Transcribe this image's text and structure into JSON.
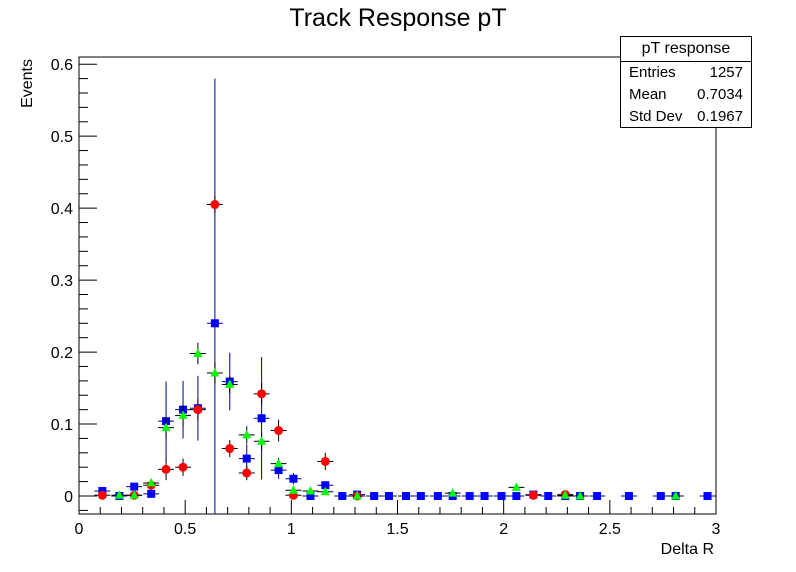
{
  "chart_data": {
    "type": "scatter",
    "title": "Track Response pT",
    "xlabel": "Delta R",
    "ylabel": "Events",
    "xlim": [
      0,
      3
    ],
    "ylim": [
      -0.025,
      0.61
    ],
    "x_ticks": [
      0,
      0.5,
      1,
      1.5,
      2,
      2.5,
      3
    ],
    "x_tick_labels": [
      "0",
      "0.5",
      "1",
      "1.5",
      "2",
      "2.5",
      "3"
    ],
    "y_ticks": [
      0,
      0.1,
      0.2,
      0.3,
      0.4,
      0.5,
      0.6
    ],
    "y_tick_labels": [
      "0",
      "0.1",
      "0.2",
      "0.3",
      "0.4",
      "0.5",
      "0.6"
    ],
    "grid": false,
    "series": [
      {
        "marker": "square",
        "color": "#0000ff",
        "error_color": "#000080",
        "points": [
          {
            "x": 0.11,
            "y": 0.007,
            "err": 0.004
          },
          {
            "x": 0.19,
            "y": 0.0,
            "err": 0.002
          },
          {
            "x": 0.26,
            "y": 0.013,
            "err": 0.005
          },
          {
            "x": 0.34,
            "y": 0.003,
            "err": 0.004
          },
          {
            "x": 0.41,
            "y": 0.104,
            "err": 0.055
          },
          {
            "x": 0.49,
            "y": 0.12,
            "err": 0.04
          },
          {
            "x": 0.56,
            "y": 0.122,
            "err": 0.045
          },
          {
            "x": 0.64,
            "y": 0.24,
            "err": 0.34
          },
          {
            "x": 0.71,
            "y": 0.159,
            "err": 0.04
          },
          {
            "x": 0.79,
            "y": 0.052,
            "err": 0.02
          },
          {
            "x": 0.86,
            "y": 0.108,
            "err": 0.085
          },
          {
            "x": 0.94,
            "y": 0.036,
            "err": 0.012
          },
          {
            "x": 1.01,
            "y": 0.024,
            "err": 0.008
          },
          {
            "x": 1.09,
            "y": 0.0,
            "err": 0.002
          },
          {
            "x": 1.16,
            "y": 0.015,
            "err": 0.005
          },
          {
            "x": 1.24,
            "y": 0.0,
            "err": 0.002
          },
          {
            "x": 1.31,
            "y": 0.002,
            "err": 0.002
          },
          {
            "x": 1.39,
            "y": 0.0,
            "err": 0.002
          },
          {
            "x": 1.46,
            "y": 0.0,
            "err": 0.002
          },
          {
            "x": 1.54,
            "y": 0.0,
            "err": 0.002
          },
          {
            "x": 1.61,
            "y": 0.0,
            "err": 0.002
          },
          {
            "x": 1.69,
            "y": 0.0,
            "err": 0.002
          },
          {
            "x": 1.76,
            "y": 0.0,
            "err": 0.002
          },
          {
            "x": 1.84,
            "y": 0.0,
            "err": 0.002
          },
          {
            "x": 1.91,
            "y": 0.0,
            "err": 0.002
          },
          {
            "x": 1.99,
            "y": 0.0,
            "err": 0.002
          },
          {
            "x": 2.06,
            "y": 0.0,
            "err": 0.002
          },
          {
            "x": 2.14,
            "y": 0.002,
            "err": 0.002
          },
          {
            "x": 2.21,
            "y": 0.0,
            "err": 0.002
          },
          {
            "x": 2.29,
            "y": 0.0,
            "err": 0.002
          },
          {
            "x": 2.36,
            "y": 0.0,
            "err": 0.002
          },
          {
            "x": 2.44,
            "y": 0.0,
            "err": 0.002
          },
          {
            "x": 2.59,
            "y": 0.0,
            "err": 0.002
          },
          {
            "x": 2.74,
            "y": 0.0,
            "err": 0.002
          },
          {
            "x": 2.81,
            "y": 0.0,
            "err": 0.002
          },
          {
            "x": 2.96,
            "y": 0.0,
            "err": 0.002
          }
        ]
      },
      {
        "marker": "circle",
        "color": "#ff0000",
        "error_color": "#000000",
        "points": [
          {
            "x": 0.11,
            "y": 0.001,
            "err": 0.003
          },
          {
            "x": 0.26,
            "y": 0.001,
            "err": 0.003
          },
          {
            "x": 0.34,
            "y": 0.015,
            "err": 0.008
          },
          {
            "x": 0.41,
            "y": 0.037,
            "err": 0.015
          },
          {
            "x": 0.49,
            "y": 0.04,
            "err": 0.012
          },
          {
            "x": 0.56,
            "y": 0.12,
            "err": 0.015
          },
          {
            "x": 0.64,
            "y": 0.405,
            "err": 0.012
          },
          {
            "x": 0.71,
            "y": 0.066,
            "err": 0.012
          },
          {
            "x": 0.79,
            "y": 0.032,
            "err": 0.01
          },
          {
            "x": 0.86,
            "y": 0.142,
            "err": 0.015
          },
          {
            "x": 0.94,
            "y": 0.091,
            "err": 0.015
          },
          {
            "x": 1.01,
            "y": 0.001,
            "err": 0.003
          },
          {
            "x": 1.16,
            "y": 0.048,
            "err": 0.012
          },
          {
            "x": 1.31,
            "y": 0.0,
            "err": 0.002
          },
          {
            "x": 2.14,
            "y": 0.001,
            "err": 0.002
          },
          {
            "x": 2.29,
            "y": 0.002,
            "err": 0.002
          }
        ]
      },
      {
        "marker": "triangle",
        "color": "#00ff00",
        "error_color": "#000000",
        "points": [
          {
            "x": 0.19,
            "y": 0.001,
            "err": 0.002
          },
          {
            "x": 0.26,
            "y": 0.001,
            "err": 0.002
          },
          {
            "x": 0.34,
            "y": 0.018,
            "err": 0.006
          },
          {
            "x": 0.41,
            "y": 0.095,
            "err": 0.015
          },
          {
            "x": 0.49,
            "y": 0.112,
            "err": 0.015
          },
          {
            "x": 0.56,
            "y": 0.198,
            "err": 0.015
          },
          {
            "x": 0.64,
            "y": 0.171,
            "err": 0.015
          },
          {
            "x": 0.71,
            "y": 0.155,
            "err": 0.012
          },
          {
            "x": 0.79,
            "y": 0.085,
            "err": 0.012
          },
          {
            "x": 0.86,
            "y": 0.076,
            "err": 0.012
          },
          {
            "x": 0.94,
            "y": 0.045,
            "err": 0.008
          },
          {
            "x": 1.01,
            "y": 0.008,
            "err": 0.004
          },
          {
            "x": 1.09,
            "y": 0.007,
            "err": 0.004
          },
          {
            "x": 1.16,
            "y": 0.006,
            "err": 0.004
          },
          {
            "x": 1.31,
            "y": 0.0,
            "err": 0.002
          },
          {
            "x": 1.76,
            "y": 0.004,
            "err": 0.002
          },
          {
            "x": 2.06,
            "y": 0.012,
            "err": 0.004
          },
          {
            "x": 2.29,
            "y": 0.001,
            "err": 0.002
          },
          {
            "x": 2.36,
            "y": 0.0,
            "err": 0.002
          },
          {
            "x": 2.81,
            "y": 0.0,
            "err": 0.002
          }
        ]
      }
    ],
    "stats_box": {
      "title": "pT response",
      "rows": [
        {
          "label": "Entries",
          "value": "1257"
        },
        {
          "label": "Mean",
          "value": "0.7034"
        },
        {
          "label": "Std Dev",
          "value": "0.1967"
        }
      ]
    }
  }
}
